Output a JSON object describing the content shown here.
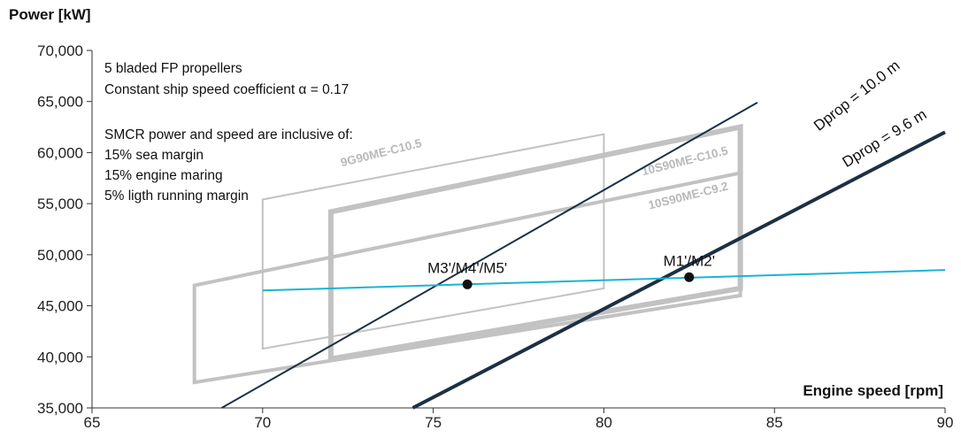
{
  "chart_data": {
    "type": "line",
    "xlabel": "Engine speed [rpm]",
    "ylabel": "Power [kW]",
    "xlim": [
      65,
      90
    ],
    "ylim": [
      35000,
      70000
    ],
    "x_ticks": [
      "65",
      "70",
      "75",
      "80",
      "85",
      "90"
    ],
    "y_ticks": [
      "35,000",
      "40,000",
      "45,000",
      "50,000",
      "55,000",
      "60,000",
      "65,000",
      "70,000"
    ],
    "notes": [
      "5 bladed FP propellers",
      "Constant ship speed coefficient α = 0.17",
      "SMCR power and speed are inclusive of:",
      "15% sea margin",
      "15% engine maring",
      "5% ligth running margin"
    ],
    "engine_layouts": [
      {
        "label": "9G90ME-C10.5",
        "corners": [
          [
            70,
            40800
          ],
          [
            70,
            55400
          ],
          [
            80,
            61800
          ],
          [
            80,
            46700
          ]
        ]
      },
      {
        "label": "10S90ME-C10.5",
        "corners": [
          [
            72,
            39800
          ],
          [
            72,
            54200
          ],
          [
            84,
            62500
          ],
          [
            84,
            46700
          ]
        ]
      },
      {
        "label": "10S90ME-C9.2",
        "corners": [
          [
            68,
            37500
          ],
          [
            68,
            47000
          ],
          [
            84,
            58000
          ],
          [
            84,
            46000
          ]
        ]
      }
    ],
    "series": [
      {
        "name": "Dprop = 10.0 m",
        "x": [
          68.8,
          84.5
        ],
        "y": [
          35000,
          64900
        ]
      },
      {
        "name": "Dprop = 9.6 m",
        "x": [
          74.4,
          90
        ],
        "y": [
          35000,
          62000
        ]
      },
      {
        "name": "",
        "x": [
          70,
          90
        ],
        "y": [
          46500,
          48500
        ]
      }
    ],
    "points": [
      {
        "label": "M3'/M4'/M5'",
        "x": 76,
        "y": 47100
      },
      {
        "label": "M1'/M2'",
        "x": 82.5,
        "y": 47800
      }
    ],
    "colors": {
      "speed_line": "#1ab4d4",
      "dprop_line": "#1c3044",
      "layout": "#c2c2c2",
      "axis": "#333333"
    },
    "grid": false
  }
}
